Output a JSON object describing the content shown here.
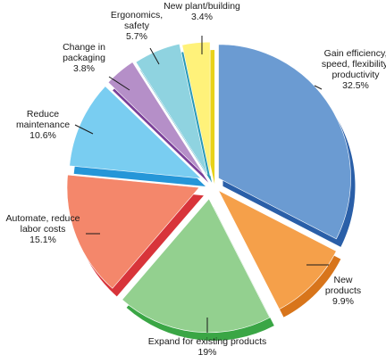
{
  "chart_data": {
    "type": "pie",
    "title": "",
    "slices": [
      {
        "label": "Gain efficiency, speed, flexibility, productivity",
        "value": 32.5,
        "label_lines": [
          "Gain efficiency,",
          "speed, flexibility,",
          "productivity"
        ],
        "value_text": "32.5%",
        "color": "#6b9bd2",
        "side": "#2a5fa8"
      },
      {
        "label": "New products",
        "value": 9.9,
        "label_lines": [
          "New",
          "products"
        ],
        "value_text": "9.9%",
        "color": "#f5a04a",
        "side": "#d8751b"
      },
      {
        "label": "Expand for existing products",
        "value": 19,
        "label_lines": [
          "Expand for existing products"
        ],
        "value_text": "19%",
        "color": "#93d08f",
        "side": "#3aa645"
      },
      {
        "label": "Automate, reduce labor costs",
        "value": 15.1,
        "label_lines": [
          "Automate, reduce",
          "labor costs"
        ],
        "value_text": "15.1%",
        "color": "#f4876b",
        "side": "#d8343a"
      },
      {
        "label": "Reduce maintenance",
        "value": 10.6,
        "label_lines": [
          "Reduce",
          "maintenance"
        ],
        "value_text": "10.6%",
        "color": "#79cdf1",
        "side": "#2596d8"
      },
      {
        "label": "Change in packaging",
        "value": 3.8,
        "label_lines": [
          "Change in",
          "packaging"
        ],
        "value_text": "3.8%",
        "color": "#b58fc8",
        "side": "#7a3f98"
      },
      {
        "label": "Ergonomics, safety",
        "value": 5.7,
        "label_lines": [
          "Ergonomics,",
          "safety"
        ],
        "value_text": "5.7%",
        "color": "#8fd3e0",
        "side": "#2a9ab8"
      },
      {
        "label": "New plant/building",
        "value": 3.4,
        "label_lines": [
          "New plant/building"
        ],
        "value_text": "3.4%",
        "color": "#fff27a",
        "side": "#e8d21a"
      }
    ]
  }
}
